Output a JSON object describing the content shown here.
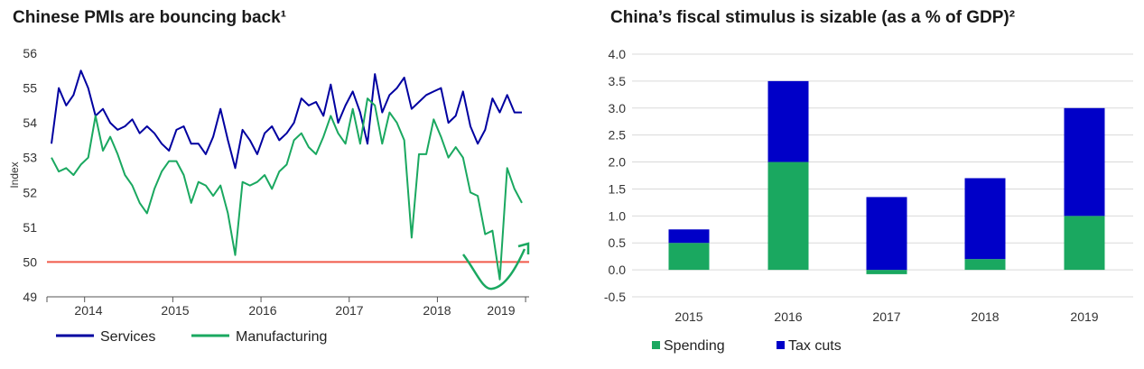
{
  "titles": {
    "left": "Chinese PMIs are bouncing back¹",
    "right": "China’s fiscal stimulus is sizable (as a % of GDP)²"
  },
  "chart_data": [
    {
      "type": "line",
      "title": "Chinese PMIs are bouncing back¹",
      "ylabel": "Index",
      "xlabel": "",
      "ylim": [
        49,
        56
      ],
      "yticks": [
        49,
        50,
        51,
        52,
        53,
        54,
        55,
        56
      ],
      "xticks": [
        "2014",
        "2015",
        "2016",
        "2017",
        "2018",
        "2019"
      ],
      "x_start": "2013-08",
      "x_step": "month",
      "reference_line": {
        "y": 50,
        "color": "#f05a4a"
      },
      "series": [
        {
          "name": "Services",
          "color": "#0000a0",
          "values": [
            53.4,
            55.0,
            54.5,
            54.8,
            55.5,
            55.0,
            54.2,
            54.4,
            54.0,
            53.8,
            53.9,
            54.1,
            53.7,
            53.9,
            53.7,
            53.4,
            53.2,
            53.8,
            53.9,
            53.4,
            53.4,
            53.1,
            53.6,
            54.4,
            53.5,
            52.7,
            53.8,
            53.5,
            53.1,
            53.7,
            53.9,
            53.5,
            53.7,
            54.0,
            54.7,
            54.5,
            54.6,
            54.2,
            55.1,
            54.0,
            54.5,
            54.9,
            54.3,
            53.4,
            55.4,
            54.3,
            54.8,
            55.0,
            55.3,
            54.4,
            54.6,
            54.8,
            54.9,
            55.0,
            54.0,
            54.2,
            54.9,
            53.9,
            53.4,
            53.8,
            54.7,
            54.3,
            54.8,
            54.3,
            54.3
          ]
        },
        {
          "name": "Manufacturing",
          "color": "#1aa860",
          "values": [
            53.0,
            52.6,
            52.7,
            52.5,
            52.8,
            53.0,
            54.2,
            53.2,
            53.6,
            53.1,
            52.5,
            52.2,
            51.7,
            51.4,
            52.1,
            52.6,
            52.9,
            52.9,
            52.5,
            51.7,
            52.3,
            52.2,
            51.9,
            52.2,
            51.4,
            50.2,
            52.3,
            52.2,
            52.3,
            52.5,
            52.1,
            52.6,
            52.8,
            53.5,
            53.7,
            53.3,
            53.1,
            53.6,
            54.2,
            53.7,
            53.4,
            54.4,
            53.4,
            54.7,
            54.5,
            53.4,
            54.3,
            54.0,
            53.5,
            50.7,
            53.1,
            53.1,
            54.1,
            53.6,
            53.0,
            53.3,
            53.0,
            52.0,
            51.9,
            50.8,
            50.9,
            49.5,
            52.7,
            52.1,
            51.7
          ]
        }
      ],
      "annotation": "curved arrow (trough and rebound)"
    },
    {
      "type": "bar",
      "stacked": true,
      "title": "China’s fiscal stimulus is sizable (as a % of GDP)²",
      "categories": [
        "2015",
        "2016",
        "2017",
        "2018",
        "2019"
      ],
      "ylim": [
        -0.5,
        4.0
      ],
      "yticks": [
        "4.0",
        "3.5",
        "3.0",
        "2.5",
        "2.0",
        "1.5",
        "1.0",
        "0.5",
        "0.0",
        "-0.5"
      ],
      "series": [
        {
          "name": "Spending",
          "color": "#1aa860",
          "values": [
            0.5,
            2.0,
            -0.08,
            0.2,
            1.0
          ]
        },
        {
          "name": "Tax cuts",
          "color": "#0000c8",
          "values": [
            0.25,
            1.5,
            1.35,
            1.5,
            2.0
          ]
        }
      ]
    }
  ]
}
